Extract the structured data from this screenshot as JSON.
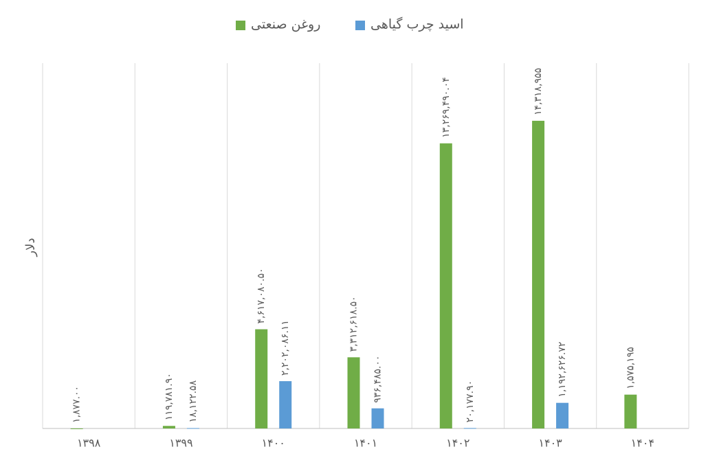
{
  "chart_data": {
    "type": "bar",
    "y_label": "دلار",
    "categories": [
      "۱۳۹۸",
      "۱۳۹۹",
      "۱۴۰۰",
      "۱۴۰۱",
      "۱۴۰۲",
      "۱۴۰۳",
      "۱۴۰۴"
    ],
    "series": [
      {
        "name": "روغن صنعتی",
        "color": "#70ad47",
        "values": [
          1877.0,
          119781.9,
          4617080.5,
          3312618.5,
          13269490.04,
          14318955,
          1575195
        ],
        "value_labels": [
          "۱,۸۷۷.۰۰",
          "۱۱۹,۷۸۱.۹۰",
          "۴,۶۱۷,۰۸۰.۵۰",
          "۳,۳۱۲,۶۱۸.۵۰",
          "۱۳,۲۶۹,۴۹۰.۰۴",
          "۱۴,۳۱۸,۹۵۵",
          "۱,۵۷۵,۱۹۵"
        ]
      },
      {
        "name": "اسید چرب گیاهی",
        "color": "#5b9bd5",
        "values": [
          null,
          18122.58,
          2202086.11,
          936485.0,
          20177.9,
          1192626.72,
          null
        ],
        "value_labels": [
          null,
          "۱۸,۱۲۲.۵۸",
          "۲,۲۰۲,۰۸۶.۱۱",
          "۹۳۶,۴۸۵.۰۰",
          "۲۰,۱۷۷.۹۰",
          "۱,۱۹۲,۶۲۶.۷۲",
          null
        ]
      }
    ],
    "ylim": [
      0,
      17000000
    ],
    "legend": "top"
  }
}
